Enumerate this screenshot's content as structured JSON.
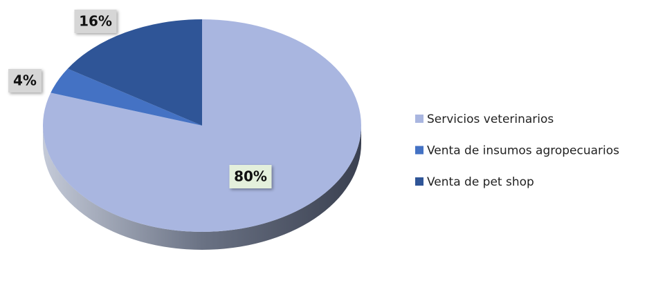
{
  "chart_data": {
    "type": "pie",
    "categories": [
      "Servicios veterinarios",
      "Venta de insumos agropecuarios",
      "Venta de pet shop"
    ],
    "values": [
      80,
      4,
      16
    ],
    "value_labels": [
      "80%",
      "4%",
      "16%"
    ],
    "colors": [
      "#a9b6e0",
      "#4472c4",
      "#2f5597"
    ],
    "legend": "right"
  }
}
